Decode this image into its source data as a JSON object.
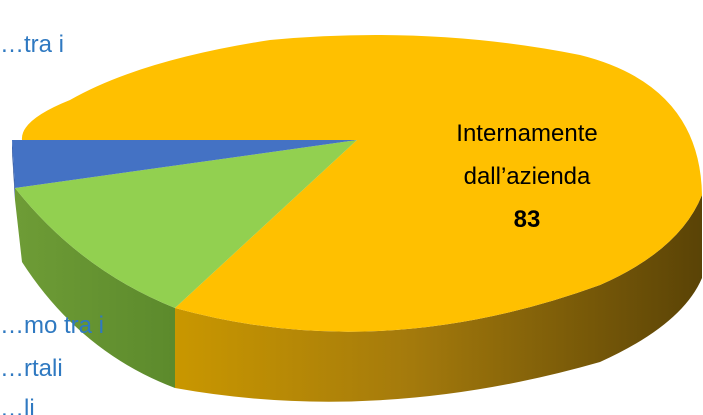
{
  "chart_data": {
    "type": "pie",
    "style": "3d",
    "slices": [
      {
        "label_lines": [
          "Internamente",
          "dall’azienda"
        ],
        "value": "83",
        "color": "#FFC000"
      },
      {
        "label_lines": [
          "…mo tra i",
          "…rtali",
          "…li"
        ],
        "color": "#92D050"
      },
      {
        "label_lines": [
          "…tra i"
        ],
        "color": "#4472C4"
      }
    ]
  }
}
